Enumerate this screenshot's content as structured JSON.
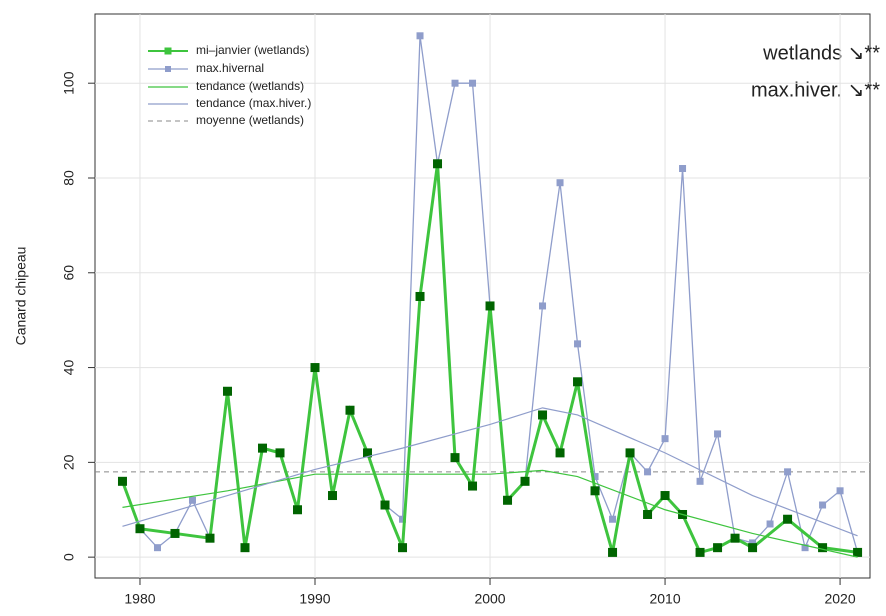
{
  "chart_data": {
    "type": "line",
    "y_label": "Canard chipeau",
    "annotations": [
      "wetlands ↘**",
      "max.hiver. ↘**"
    ],
    "xlim": [
      1977.43,
      2021.71
    ],
    "ylim": [
      -4.4,
      114.6
    ],
    "xticks": [
      1980,
      1990,
      2000,
      2010,
      2020
    ],
    "yticks": [
      0,
      20,
      40,
      60,
      80,
      100
    ],
    "grid": true,
    "legend": "top-left",
    "series": [
      {
        "name": "max.hivernal",
        "color": "#8f9dcb",
        "marker": "square",
        "x": [
          1979,
          1980,
          1981,
          1982,
          1983,
          1984,
          1985,
          1986,
          1987,
          1988,
          1989,
          1990,
          1991,
          1992,
          1993,
          1994,
          1995,
          1996,
          1997,
          1998,
          1999,
          2000,
          2001,
          2002,
          2003,
          2004,
          2005,
          2006,
          2007,
          2008,
          2009,
          2010,
          2011,
          2012,
          2013,
          2014,
          2015,
          2016,
          2017,
          2018,
          2019,
          2020,
          2021
        ],
        "values": [
          16,
          6,
          2,
          5,
          12,
          4,
          35,
          2,
          23,
          22,
          10,
          40,
          13,
          31,
          22,
          11,
          8,
          110,
          83,
          100,
          100,
          53,
          12,
          16,
          53,
          79,
          45,
          17,
          8,
          22,
          18,
          25,
          82,
          16,
          26,
          4,
          3,
          7,
          18,
          2,
          11,
          14,
          1
        ]
      },
      {
        "name": "mi–janvier (wetlands)",
        "color": "#3ec43e",
        "marker_color": "#006400",
        "marker": "square",
        "x": [
          1979,
          1980,
          1982,
          1984,
          1985,
          1986,
          1987,
          1988,
          1989,
          1990,
          1991,
          1992,
          1993,
          1994,
          1995,
          1996,
          1997,
          1998,
          1999,
          2000,
          2001,
          2002,
          2003,
          2004,
          2005,
          2006,
          2007,
          2008,
          2009,
          2010,
          2011,
          2012,
          2013,
          2014,
          2015,
          2017,
          2019,
          2021
        ],
        "values": [
          16,
          6,
          5,
          4,
          35,
          2,
          23,
          22,
          10,
          40,
          13,
          31,
          22,
          11,
          2,
          55,
          83,
          21,
          15,
          53,
          12,
          16,
          30,
          22,
          37,
          14,
          1,
          22,
          9,
          13,
          9,
          1,
          2,
          4,
          2,
          8,
          2,
          1
        ]
      },
      {
        "name": "tendance (wetlands)",
        "color": "#3ec43e",
        "x": [
          1979,
          1985,
          1990,
          1995,
          2000,
          2003,
          2005,
          2010,
          2015,
          2021
        ],
        "values": [
          10.5,
          14,
          17.5,
          17.5,
          17.5,
          18.3,
          17,
          10,
          5,
          0
        ]
      },
      {
        "name": "tendance (max.hiver.)",
        "color": "#8f9dcb",
        "x": [
          1979,
          1985,
          1990,
          1995,
          2000,
          2003,
          2005,
          2010,
          2015,
          2021
        ],
        "values": [
          6.5,
          13,
          18.5,
          23,
          28,
          31.5,
          30,
          22,
          13,
          4.5
        ]
      }
    ],
    "reference_line": {
      "name": "moyenne (wetlands)",
      "value": 18,
      "color": "#888888"
    }
  }
}
